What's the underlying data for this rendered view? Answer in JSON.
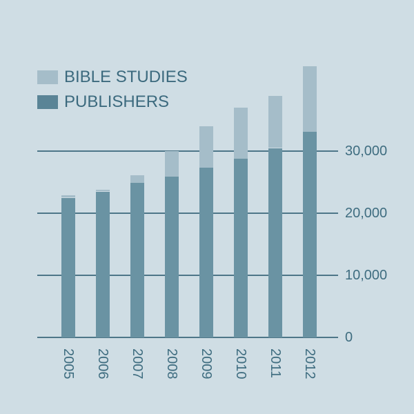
{
  "colors": {
    "background": "#cfdde4",
    "bible_studies": "#a5bdc9",
    "publishers_legend": "#5a8496",
    "publishers_bar": "#6a93a3",
    "text": "#3f6d80",
    "grid": "#4d7688"
  },
  "legend": {
    "items": [
      {
        "label": "BIBLE STUDIES",
        "color": "#a5bdc9"
      },
      {
        "label": "PUBLISHERS",
        "color": "#5a8496"
      }
    ]
  },
  "chart_data": {
    "type": "bar",
    "stacked": true,
    "title": "",
    "xlabel": "",
    "ylabel": "",
    "categories": [
      "2005",
      "2006",
      "2007",
      "2008",
      "2009",
      "2010",
      "2011",
      "2012"
    ],
    "series": [
      {
        "name": "PUBLISHERS",
        "values": [
          22500,
          23500,
          24900,
          25900,
          27300,
          28800,
          30500,
          33100
        ]
      },
      {
        "name": "BIBLE STUDIES",
        "values": [
          400,
          300,
          1200,
          4100,
          6700,
          8200,
          8400,
          10600
        ]
      }
    ],
    "totals": [
      22900,
      23800,
      26100,
      30000,
      34000,
      37000,
      38900,
      43700
    ],
    "yticks": [
      0,
      10000,
      20000,
      30000
    ],
    "ytick_labels": [
      "0",
      "10,000",
      "20,000",
      "30,000"
    ],
    "ylim": [
      0,
      45000
    ],
    "grid": true,
    "yaxis_position": "right",
    "legend_position": "top-left",
    "xtick_rotation": 90
  }
}
